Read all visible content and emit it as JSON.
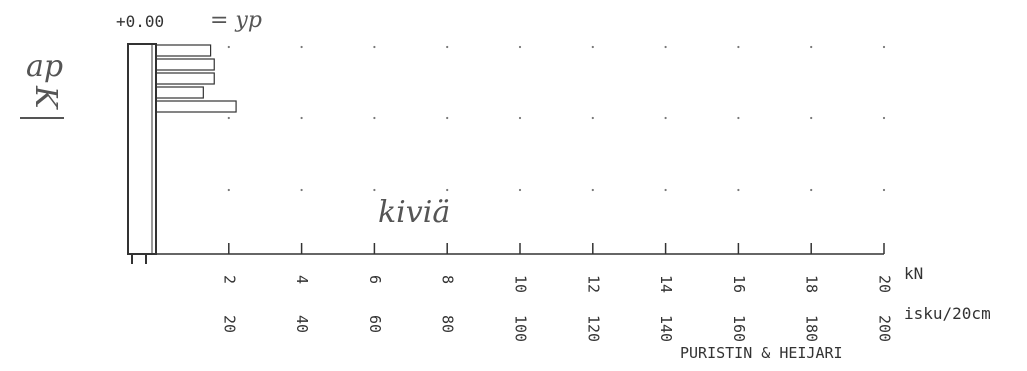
{
  "chart_data": {
    "type": "bar",
    "orientation": "horizontal",
    "top_label": "+0.00",
    "handwritten_top": "= yp",
    "handwritten_side": [
      "ap",
      "K"
    ],
    "handwritten_note": "kiviä",
    "x_unit_top": "kN",
    "x_unit_bottom": "isku/20cm",
    "ticks_kn": [
      "2",
      "4",
      "6",
      "8",
      "10",
      "12",
      "14",
      "16",
      "18",
      "20"
    ],
    "ticks_isku": [
      "20",
      "40",
      "60",
      "80",
      "100",
      "120",
      "140",
      "160",
      "180",
      "200"
    ],
    "bars_isku": [
      15,
      16,
      16,
      13,
      22
    ],
    "footer": "PURISTIN & HEIJARI",
    "xlim_isku": [
      0,
      200
    ],
    "grid": "dotted"
  }
}
